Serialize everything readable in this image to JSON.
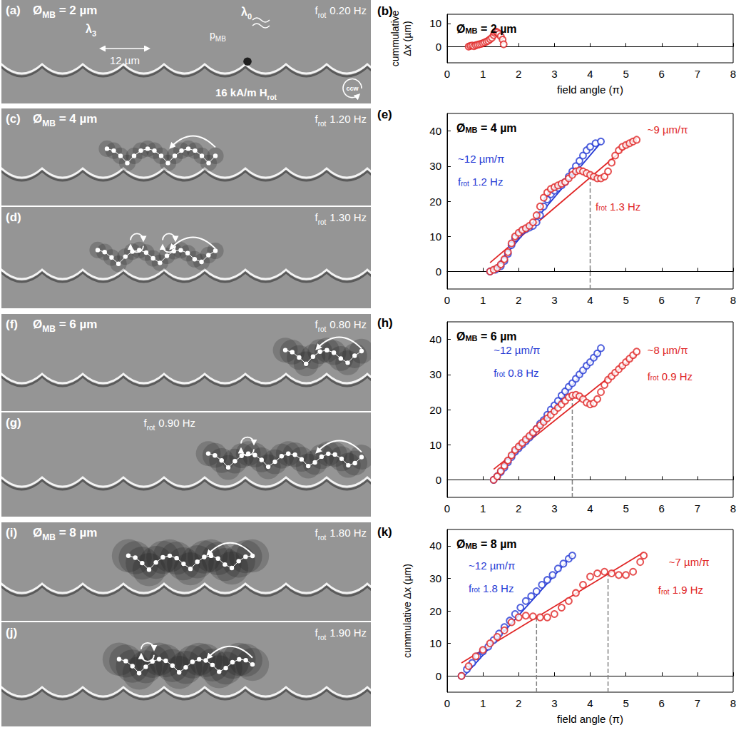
{
  "images": [
    {
      "title": {
        "text": "Ø",
        "sub": "MB",
        "after": " = 2 µm"
      },
      "bead_diameter": 2,
      "strips": [
        {
          "letter": "(a)",
          "freq": {
            "text": "f",
            "sub": "rot",
            "value": "0.20 Hz"
          }
        }
      ],
      "labels": [
        {
          "text": "λ",
          "sub": "3"
        },
        {
          "text": "λ",
          "sub": "0"
        },
        {
          "text": "p",
          "sub": "MB"
        }
      ],
      "scale_bar": "12 µm",
      "field": {
        "text": "16 kA/m H",
        "sub": "rot"
      },
      "rotation": "ccw"
    },
    {
      "title": {
        "text": "Ø",
        "sub": "MB",
        "after": " = 4 µm"
      },
      "bead_diameter": 4,
      "strips": [
        {
          "letter": "(c)",
          "freq": {
            "text": "f",
            "sub": "rot",
            "value": "1.20 Hz"
          }
        },
        {
          "letter": "(d)",
          "freq": {
            "text": "f",
            "sub": "rot",
            "value": "1.30 Hz"
          }
        }
      ]
    },
    {
      "title": {
        "text": "Ø",
        "sub": "MB",
        "after": " = 6 µm"
      },
      "bead_diameter": 6,
      "strips": [
        {
          "letter": "(f)",
          "freq": {
            "text": "f",
            "sub": "rot",
            "value": "0.80 Hz"
          }
        },
        {
          "letter": "(g)",
          "freq": {
            "text": "f",
            "sub": "rot",
            "value": "0.90 Hz"
          }
        }
      ]
    },
    {
      "title": {
        "text": "Ø",
        "sub": "MB",
        "after": " = 8 µm"
      },
      "bead_diameter": 8,
      "strips": [
        {
          "letter": "(i)",
          "freq": {
            "text": "f",
            "sub": "rot",
            "value": "1.80 Hz"
          }
        },
        {
          "letter": "(j)",
          "freq": {
            "text": "f",
            "sub": "rot",
            "value": "1.90 Hz"
          }
        }
      ]
    }
  ],
  "chart_data": [
    {
      "type": "scatter",
      "letter": "(b)",
      "title": {
        "text": "Ø",
        "sub": "MB",
        "after": " = 2 µm"
      },
      "xlabel": "field angle (π)",
      "ylabel": "cummulative Δx (µm)",
      "xlim": [
        0,
        8
      ],
      "xticks": [
        0,
        1,
        2,
        3,
        4,
        5,
        6,
        7,
        8
      ],
      "ylim": [
        -7,
        14
      ],
      "yticks": [
        0,
        10
      ],
      "series": [
        {
          "color": "#e02424",
          "marker": "circle",
          "x": [
            0.6,
            0.65,
            0.7,
            0.75,
            0.8,
            0.85,
            0.9,
            0.95,
            1.0,
            1.05,
            1.1,
            1.15,
            1.2,
            1.25,
            1.3,
            1.33,
            1.36,
            1.4,
            1.45,
            1.5,
            1.55,
            1.58
          ],
          "values": [
            0,
            0.3,
            0.5,
            0.2,
            0.6,
            0.8,
            1,
            1.2,
            1.5,
            1.8,
            2.2,
            2.6,
            3.2,
            3.8,
            5,
            6,
            6.5,
            6.2,
            5.5,
            4.5,
            3,
            1
          ]
        }
      ]
    },
    {
      "type": "scatter",
      "letter": "(e)",
      "title": {
        "text": "Ø",
        "sub": "MB",
        "after": " = 4 µm"
      },
      "xlim": [
        0,
        8
      ],
      "xticks": [
        0,
        1,
        2,
        3,
        4,
        5,
        6,
        7,
        8
      ],
      "ylim": [
        -5,
        45
      ],
      "yticks": [
        0,
        10,
        20,
        30,
        40
      ],
      "vlines": [
        {
          "x": 4.0,
          "y": 27.5
        }
      ],
      "series": [
        {
          "color": "#2439d4",
          "marker": "circle",
          "x": [
            1.2,
            1.35,
            1.5,
            1.6,
            1.7,
            1.8,
            1.9,
            2.0,
            2.1,
            2.2,
            2.3,
            2.4,
            2.5,
            2.6,
            2.7,
            2.8,
            2.9,
            3.0,
            3.1,
            3.2,
            3.3,
            3.4,
            3.5,
            3.6,
            3.7,
            3.8,
            3.9,
            4.0,
            4.15,
            4.3
          ],
          "values": [
            0,
            0.5,
            1.5,
            3,
            5,
            7.5,
            9.5,
            10.5,
            11.5,
            12,
            12.5,
            13,
            14,
            16,
            18.5,
            20.5,
            22,
            23,
            23.8,
            24.5,
            25.5,
            27,
            28.5,
            30,
            31.5,
            33,
            34.5,
            35.5,
            36.5,
            37
          ],
          "fit": {
            "x": [
              1.2,
              4.3
            ],
            "values": [
              -0.5,
              36.7
            ]
          },
          "slope_label": "~12 µm/π",
          "freq": {
            "text": "f",
            "sub": "rot",
            "value": "1.2 Hz"
          }
        },
        {
          "color": "#e02424",
          "marker": "circle",
          "x": [
            1.2,
            1.3,
            1.4,
            1.5,
            1.6,
            1.7,
            1.8,
            1.9,
            2.0,
            2.1,
            2.2,
            2.3,
            2.4,
            2.5,
            2.6,
            2.7,
            2.8,
            2.9,
            3.0,
            3.1,
            3.2,
            3.3,
            3.4,
            3.5,
            3.6,
            3.7,
            3.8,
            3.9,
            4.0,
            4.1,
            4.2,
            4.3,
            4.4,
            4.5,
            4.6,
            4.7,
            4.8,
            4.9,
            5.0,
            5.1,
            5.2,
            5.3
          ],
          "values": [
            0,
            0.5,
            1,
            2,
            3.5,
            5.5,
            8,
            10,
            11,
            11.8,
            12.3,
            13,
            14,
            16,
            18.5,
            21,
            22.5,
            23.5,
            24,
            24.5,
            25,
            25.5,
            26.5,
            27.5,
            28.5,
            28.8,
            28.5,
            28,
            27.5,
            27,
            26.5,
            26.5,
            27,
            28.5,
            31,
            33,
            34.5,
            35.5,
            36,
            36.5,
            37,
            37.5
          ],
          "fit": {
            "x": [
              1.2,
              5.3
            ],
            "values": [
              2.5,
              38
            ]
          },
          "slope_label": "~9 µm/π",
          "freq": {
            "text": "f",
            "sub": "rot",
            "value": "1.3 Hz"
          }
        }
      ]
    },
    {
      "type": "scatter",
      "letter": "(h)",
      "title": {
        "text": "Ø",
        "sub": "MB",
        "after": " = 6 µm"
      },
      "xlim": [
        0,
        8
      ],
      "xticks": [
        0,
        1,
        2,
        3,
        4,
        5,
        6,
        7,
        8
      ],
      "ylim": [
        -5,
        45
      ],
      "yticks": [
        0,
        10,
        20,
        30,
        40
      ],
      "vlines": [
        {
          "x": 3.5,
          "y": 24
        }
      ],
      "series": [
        {
          "color": "#2439d4",
          "marker": "circle",
          "x": [
            1.3,
            1.4,
            1.5,
            1.6,
            1.7,
            1.8,
            1.9,
            2.0,
            2.1,
            2.2,
            2.3,
            2.4,
            2.5,
            2.6,
            2.7,
            2.8,
            2.9,
            3.0,
            3.1,
            3.2,
            3.3,
            3.4,
            3.5,
            3.6,
            3.7,
            3.8,
            3.9,
            4.0,
            4.1,
            4.2,
            4.3
          ],
          "values": [
            0,
            1,
            2.2,
            3.5,
            5,
            6.5,
            8,
            9,
            10,
            11,
            12,
            13.2,
            14.5,
            16,
            17,
            18.5,
            20,
            21.2,
            22.5,
            24,
            25.2,
            26.5,
            27.5,
            28.8,
            30,
            31.2,
            32.5,
            33.5,
            34.8,
            36,
            37.5
          ],
          "fit": {
            "x": [
              1.3,
              4.3
            ],
            "values": [
              -0.5,
              37
            ]
          },
          "slope_label": "~12 µm/π",
          "freq": {
            "text": "f",
            "sub": "rot",
            "value": "0.8 Hz"
          }
        },
        {
          "color": "#e02424",
          "marker": "circle",
          "x": [
            1.3,
            1.4,
            1.5,
            1.6,
            1.7,
            1.8,
            1.9,
            2.0,
            2.1,
            2.2,
            2.3,
            2.4,
            2.5,
            2.6,
            2.7,
            2.8,
            2.9,
            3.0,
            3.1,
            3.2,
            3.3,
            3.4,
            3.5,
            3.6,
            3.7,
            3.8,
            3.9,
            4.0,
            4.1,
            4.2,
            4.3,
            4.4,
            4.5,
            4.6,
            4.7,
            4.8,
            4.9,
            5.0,
            5.1,
            5.2,
            5.3
          ],
          "values": [
            0,
            1,
            2.5,
            4,
            5.5,
            7,
            8.5,
            9.5,
            10.5,
            11.5,
            12.5,
            13.5,
            14.5,
            15.5,
            16.5,
            17.5,
            18.5,
            19.5,
            20.5,
            21.5,
            22.5,
            23.5,
            24,
            24.2,
            23.8,
            23,
            22,
            21.5,
            21.8,
            23,
            25,
            27,
            28.5,
            29.5,
            30.5,
            31.5,
            32.5,
            33.5,
            34.5,
            35.5,
            36.5
          ],
          "fit": {
            "x": [
              1.3,
              5.3
            ],
            "values": [
              3,
              35.5
            ]
          },
          "slope_label": "~8 µm/π",
          "freq": {
            "text": "f",
            "sub": "rot",
            "value": "0.9 Hz"
          }
        }
      ]
    },
    {
      "type": "scatter",
      "letter": "(k)",
      "title": {
        "text": "Ø",
        "sub": "MB",
        "after": " = 8 µm"
      },
      "xlabel": "field angle (π)",
      "ylabel": "cummulative Δx (µm)",
      "xlim": [
        0,
        8
      ],
      "xticks": [
        0,
        1,
        2,
        3,
        4,
        5,
        6,
        7,
        8
      ],
      "ylim": [
        -5,
        45
      ],
      "yticks": [
        0,
        10,
        20,
        30,
        40
      ],
      "vlines": [
        {
          "x": 2.5,
          "y": 18.2
        },
        {
          "x": 4.5,
          "y": 31.7
        }
      ],
      "series": [
        {
          "color": "#2439d4",
          "marker": "circle",
          "x": [
            0.4,
            0.55,
            0.7,
            0.85,
            1.0,
            1.15,
            1.3,
            1.45,
            1.6,
            1.75,
            1.9,
            2.05,
            2.2,
            2.35,
            2.5,
            2.65,
            2.8,
            2.95,
            3.1,
            3.25,
            3.4,
            3.5
          ],
          "values": [
            0,
            2,
            4,
            6,
            7.5,
            9,
            11,
            13,
            15,
            17,
            19,
            21,
            23,
            24.5,
            26,
            28,
            29.5,
            31,
            33,
            34.5,
            36,
            37
          ],
          "fit": {
            "x": [
              0.4,
              3.5
            ],
            "values": [
              -1,
              37
            ]
          },
          "slope_label": "~12 µm/π",
          "freq": {
            "text": "f",
            "sub": "rot",
            "value": "1.8 Hz"
          }
        },
        {
          "color": "#e02424",
          "marker": "circle",
          "x": [
            0.4,
            0.6,
            0.8,
            1.0,
            1.2,
            1.4,
            1.6,
            1.8,
            2.0,
            2.2,
            2.4,
            2.6,
            2.8,
            3.0,
            3.2,
            3.4,
            3.6,
            3.8,
            4.0,
            4.2,
            4.4,
            4.6,
            4.8,
            5.0,
            5.2,
            5.4,
            5.5
          ],
          "values": [
            0,
            3,
            6,
            8,
            10,
            12,
            14,
            16.5,
            18,
            18.5,
            18.3,
            18,
            18,
            19,
            21,
            23,
            25.5,
            28,
            30.5,
            31.5,
            32,
            31.5,
            31,
            31,
            32,
            35,
            37
          ],
          "fit": {
            "x": [
              0.4,
              5.5
            ],
            "values": [
              4,
              38
            ]
          },
          "slope_label": "~7 µm/π",
          "freq": {
            "text": "f",
            "sub": "rot",
            "value": "1.9 Hz"
          }
        }
      ]
    }
  ]
}
